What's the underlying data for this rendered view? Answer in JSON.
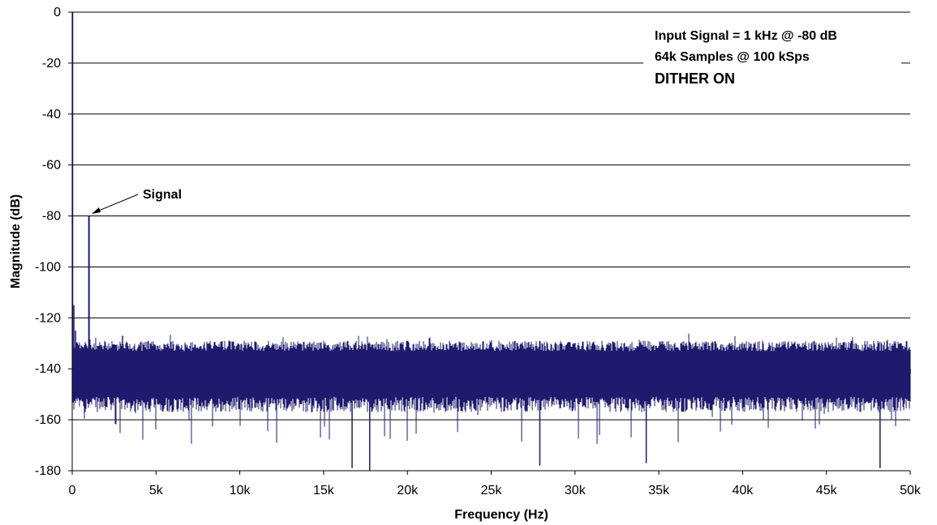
{
  "chart_data": {
    "type": "line",
    "title": "",
    "xlabel": "Frequency (Hz)",
    "ylabel": "Magnitude (dB)",
    "xlim": [
      0,
      50000
    ],
    "ylim": [
      -180,
      0
    ],
    "x_ticks": [
      0,
      5000,
      10000,
      15000,
      20000,
      25000,
      30000,
      35000,
      40000,
      45000,
      50000
    ],
    "x_tick_labels": [
      "0",
      "5k",
      "10k",
      "15k",
      "20k",
      "25k",
      "30k",
      "35k",
      "40k",
      "45k",
      "50k"
    ],
    "y_ticks": [
      0,
      -20,
      -40,
      -60,
      -80,
      -100,
      -120,
      -140,
      -160,
      -180
    ],
    "y_tick_labels": [
      "0",
      "-20",
      "-40",
      "-60",
      "-80",
      "-100",
      "-120",
      "-140",
      "-160",
      "-180"
    ],
    "grid": "horizontal",
    "series_color": "#1f1a6e",
    "series": [
      {
        "x": [
          0,
          100,
          200,
          500,
          1000,
          1500,
          3000,
          5000,
          10000,
          15000,
          16700,
          17750,
          20000,
          25000,
          27900,
          30000,
          34250,
          35000,
          40000,
          45000,
          48200,
          50000
        ],
        "y": [
          0,
          -115,
          -125,
          -132,
          -80,
          -131,
          -127,
          -140,
          -140,
          -140,
          -179,
          -180,
          -140,
          -140,
          -178,
          -140,
          -177,
          -140,
          -140,
          -140,
          -179,
          -140
        ]
      }
    ],
    "noise_floor": {
      "x_range": [
        0,
        50000
      ],
      "center": -142,
      "upper": -129,
      "lower_typical": -154,
      "lower_min": -180
    },
    "annotations": [
      {
        "text": "Signal",
        "target": {
          "x": 1000,
          "y": -80
        }
      },
      {
        "text": "Input Signal = 1 kHz @ -80 dB"
      },
      {
        "text": "64k Samples @ 100 kSps"
      },
      {
        "text": "DITHER ON"
      }
    ]
  }
}
